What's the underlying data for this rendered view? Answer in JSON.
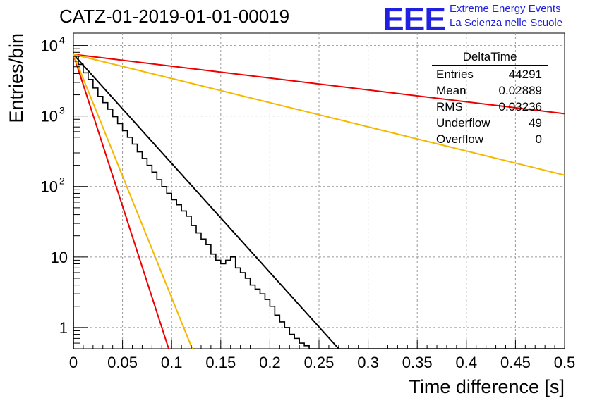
{
  "title": "CATZ-01-2019-01-01-00019",
  "logo": {
    "mark": "EEE",
    "line1": "Extreme Energy Events",
    "line2": "La Scienza nelle Scuole",
    "color": "#2020e0"
  },
  "stats": {
    "name": "DeltaTime",
    "rows": [
      {
        "key": "Entries",
        "value": "44291"
      },
      {
        "key": "Mean",
        "value": "0.02889"
      },
      {
        "key": "RMS",
        "value": "0.03236"
      },
      {
        "key": "Underflow",
        "value": "49"
      },
      {
        "key": "Overflow",
        "value": "0"
      }
    ]
  },
  "chart_data": {
    "type": "line",
    "xlabel": "Time difference [s]",
    "ylabel": "Entries/bin",
    "xlim": [
      0,
      0.5
    ],
    "ylim": [
      0.5,
      15000
    ],
    "yscale": "log",
    "grid": true,
    "xticks": [
      "0",
      "0.05",
      "0.1",
      "0.15",
      "0.2",
      "0.25",
      "0.3",
      "0.35",
      "0.4",
      "0.45",
      "0.5"
    ],
    "yticks": [
      {
        "value": 1,
        "label": "1"
      },
      {
        "value": 10,
        "label": "10"
      },
      {
        "value": 100,
        "label": "10",
        "sup": "2"
      },
      {
        "value": 1000,
        "label": "10",
        "sup": "3"
      },
      {
        "value": 10000,
        "label": "10",
        "sup": "4"
      }
    ],
    "histogram": {
      "bin_width": 0.005,
      "color": "#000000",
      "values": [
        7500,
        5400,
        4100,
        3300,
        2500,
        1900,
        1550,
        1250,
        980,
        780,
        620,
        500,
        400,
        310,
        250,
        200,
        160,
        125,
        100,
        80,
        65,
        55,
        45,
        38,
        28,
        22,
        18,
        15,
        11,
        9,
        8,
        9,
        10,
        7,
        6,
        5,
        4,
        3.5,
        3,
        2.5,
        2,
        1.5,
        1.2,
        1,
        0.8,
        0.7,
        0.6,
        0.55,
        0.5,
        0.5,
        0.5,
        0.5,
        0.5,
        0.5,
        0.5,
        0.5,
        0.5,
        0.5,
        0.5,
        0.5,
        0.5,
        0.5,
        0.5,
        0.5,
        0.5,
        0.5,
        0.5,
        0.5,
        0.5,
        0.5,
        0.5,
        0.5,
        0.5,
        0.5,
        0.5,
        0.5,
        0.5,
        0.5,
        0.5,
        0.5,
        0.5,
        0.5,
        0.5,
        0.5,
        0.5,
        0.5,
        0.5,
        0.5,
        0.5,
        0.5,
        0.5,
        0.5,
        0.5,
        0.5,
        0.5,
        0.5,
        0.5,
        0.5,
        0.5,
        0.5
      ]
    },
    "series": [
      {
        "color": "#000000",
        "x": [
          0,
          0.27
        ],
        "y": [
          7500,
          0.5
        ]
      },
      {
        "color": "#ee0000",
        "x": [
          0,
          0.097
        ],
        "y": [
          7500,
          0.5
        ]
      },
      {
        "color": "#f5b800",
        "x": [
          0,
          0.121
        ],
        "y": [
          7500,
          0.5
        ]
      },
      {
        "color": "#ee0000",
        "x": [
          0,
          0.5
        ],
        "y": [
          7500,
          1080
        ]
      },
      {
        "color": "#f5b800",
        "x": [
          0,
          0.5
        ],
        "y": [
          7500,
          145
        ]
      }
    ]
  }
}
